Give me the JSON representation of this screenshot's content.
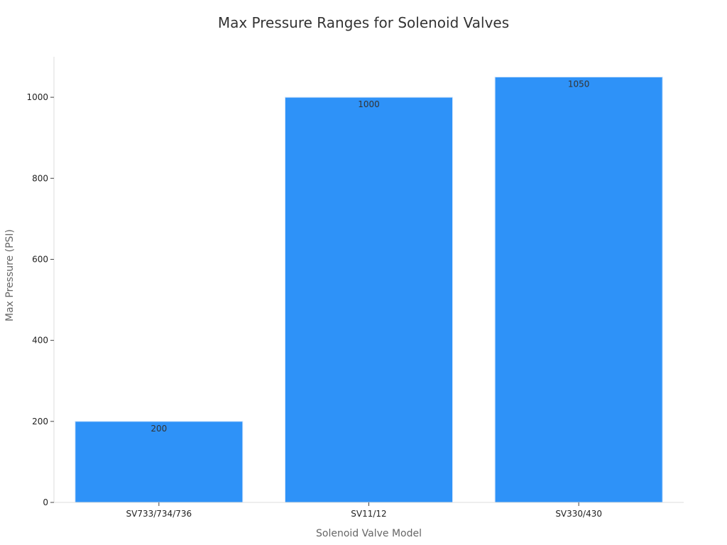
{
  "chart_data": {
    "type": "bar",
    "title": "Max Pressure Ranges for Solenoid Valves",
    "xlabel": "Solenoid Valve Model",
    "ylabel": "Max Pressure (PSI)",
    "categories": [
      "SV733/734/736",
      "SV11/12",
      "SV330/430"
    ],
    "values": [
      200,
      1000,
      1050
    ],
    "data_labels": [
      "200",
      "1000",
      "1050"
    ],
    "ylim": [
      0,
      1100
    ],
    "yticks": [
      0,
      200,
      400,
      600,
      800,
      1000
    ],
    "ytick_labels": [
      "0",
      "200",
      "400",
      "600",
      "800",
      "1000"
    ],
    "grid": false,
    "legend": "none",
    "bar_color": "#2e92f8"
  }
}
